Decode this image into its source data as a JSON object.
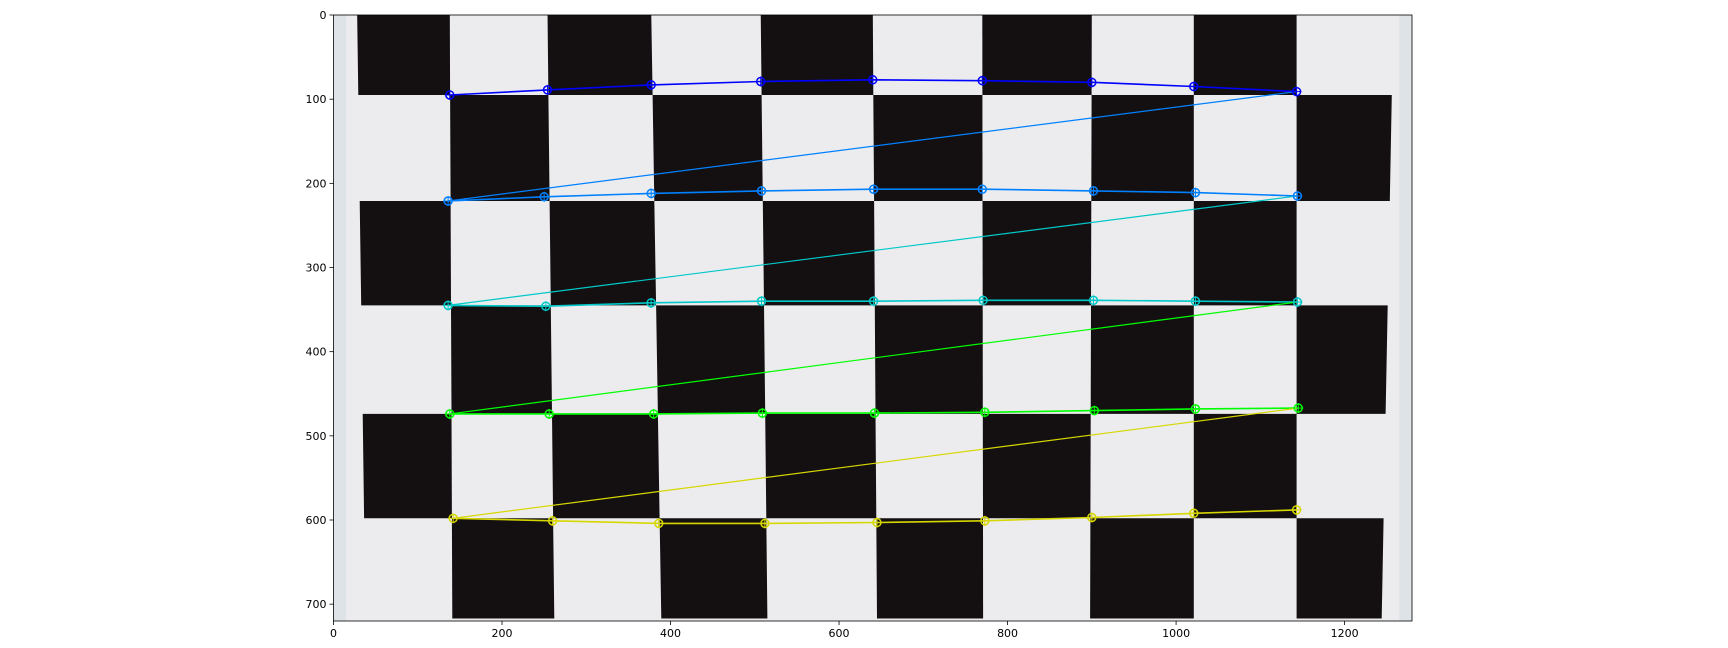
{
  "chart_data": {
    "type": "scatter",
    "title": "",
    "xlabel": "",
    "ylabel": "",
    "xlim": [
      0,
      1280
    ],
    "ylim": [
      720,
      0
    ],
    "x_ticks": [
      0,
      200,
      400,
      600,
      800,
      1000,
      1200
    ],
    "y_ticks": [
      0,
      100,
      200,
      300,
      400,
      500,
      600,
      700
    ],
    "grid": false,
    "background_image": "calibration checkerboard photograph",
    "board": {
      "col_edges_top": [
        28,
        138,
        254,
        377,
        507,
        640,
        770,
        900,
        1021,
        1143,
        1258
      ],
      "col_edges_bottom": [
        38,
        141,
        262,
        389,
        515,
        645,
        771,
        898,
        1021,
        1143,
        1244
      ],
      "row_edges": [
        -5,
        95,
        221,
        345,
        474,
        598,
        717
      ],
      "first_dark_row_start_col": 0
    },
    "series": [
      {
        "color": "#0000ff",
        "x": [
          138,
          254,
          377,
          507,
          640,
          770,
          900,
          1021,
          1143
        ],
        "y": [
          95,
          89,
          83,
          79,
          77,
          78,
          80,
          85,
          91
        ]
      },
      {
        "color": "#0080ff",
        "x": [
          136,
          250,
          377,
          508,
          641,
          770,
          902,
          1023,
          1144
        ],
        "y": [
          221,
          216,
          212,
          209,
          207,
          207,
          209,
          211,
          215
        ]
      },
      {
        "color": "#00c8c8",
        "x": [
          136,
          252,
          377,
          508,
          641,
          771,
          902,
          1023,
          1144
        ],
        "y": [
          345,
          346,
          342,
          340,
          340,
          339,
          339,
          340,
          341
        ]
      },
      {
        "color": "#00ff00",
        "x": [
          138,
          256,
          380,
          509,
          642,
          773,
          903,
          1023,
          1145
        ],
        "y": [
          474,
          474,
          474,
          473,
          473,
          472,
          470,
          468,
          467
        ]
      },
      {
        "color": "#d7d700",
        "x": [
          142,
          260,
          386,
          512,
          645,
          773,
          900,
          1021,
          1143
        ],
        "y": [
          598,
          601,
          604,
          604,
          603,
          601,
          597,
          592,
          588
        ]
      }
    ]
  }
}
